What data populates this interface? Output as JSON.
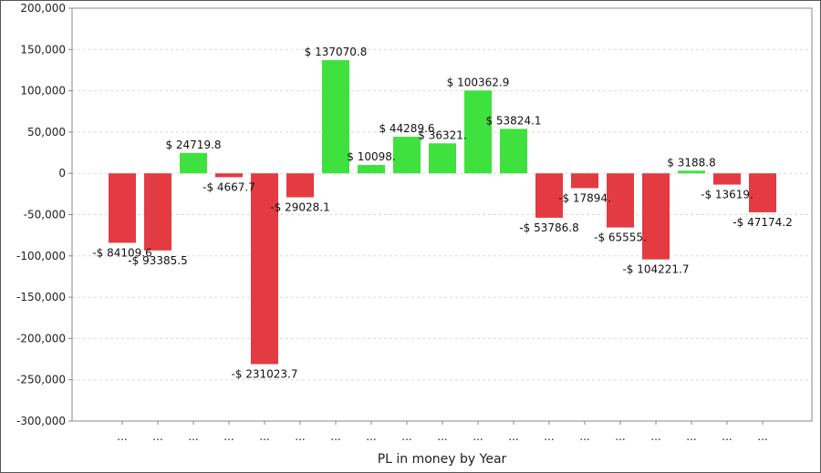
{
  "chart_data": {
    "type": "bar",
    "title": "",
    "xlabel": "PL in money by Year",
    "ylabel": "",
    "ylim": [
      -300000,
      200000
    ],
    "yticks": [
      -300000,
      -250000,
      -200000,
      -150000,
      -100000,
      -50000,
      0,
      50000,
      100000,
      150000,
      200000
    ],
    "ytick_labels": [
      "-300,000",
      "-250,000",
      "-200,000",
      "-150,000",
      "-100,000",
      "-50,000",
      "0",
      "50,000",
      "100,000",
      "150,000",
      "200,000"
    ],
    "grid": true,
    "positive_color": "#3fe13f",
    "negative_color": "#e43b42",
    "categories": [
      "...",
      "...",
      "...",
      "...",
      "...",
      "...",
      "...",
      "...",
      "...",
      "...",
      "...",
      "...",
      "...",
      "...",
      "...",
      "...",
      "...",
      "...",
      "..."
    ],
    "values": [
      -84109.6,
      -93385.5,
      24719.8,
      -4667.7,
      -231023.7,
      -29028.1,
      137070.8,
      10098.3,
      44289.6,
      36321.2,
      100362.9,
      53824.1,
      -53786.8,
      -17894.1,
      -65555.1,
      -104221.7,
      3188.8,
      -13619.1,
      -47174.2
    ],
    "data_labels": [
      "-$ 84109.6",
      "-$ 93385.5",
      "$ 24719.8",
      "-$ 4667.7",
      "-$ 231023.7",
      "-$ 29028.1",
      "$ 137070.8",
      "$ 10098.",
      "$ 44289.6",
      "$ 36321.",
      "$ 100362.9",
      "$ 53824.1",
      "-$ 53786.8",
      "-$ 17894.",
      "-$ 65555.",
      "-$ 104221.7",
      "$ 3188.8",
      "-$ 13619.",
      "-$ 47174.2"
    ]
  }
}
